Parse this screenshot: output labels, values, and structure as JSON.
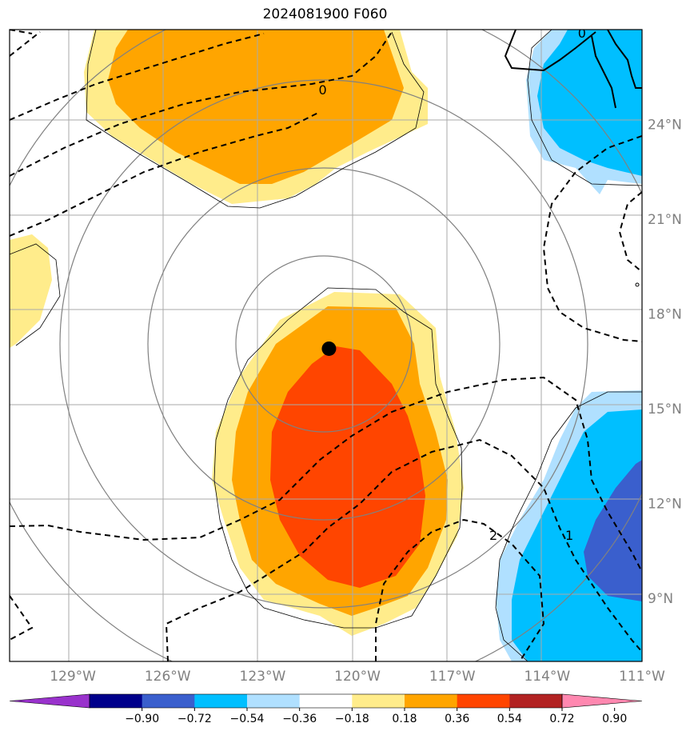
{
  "chart_data": {
    "type": "map",
    "title": "2024081900 F060",
    "lon_ticks": [
      {
        "value": -129,
        "label": "129°W"
      },
      {
        "value": -126,
        "label": "126°W"
      },
      {
        "value": -123,
        "label": "123°W"
      },
      {
        "value": -120,
        "label": "120°W"
      },
      {
        "value": -117,
        "label": "117°W"
      },
      {
        "value": -114,
        "label": "114°W"
      },
      {
        "value": -111,
        "label": "111°W"
      }
    ],
    "lat_ticks": [
      {
        "value": 9,
        "label": "9°N"
      },
      {
        "value": 12,
        "label": "12°N"
      },
      {
        "value": 15,
        "label": "15°N"
      },
      {
        "value": 18,
        "label": "18°N"
      },
      {
        "value": 21,
        "label": "21°N"
      },
      {
        "value": 24,
        "label": "24°N"
      }
    ],
    "lon_range": [
      -131,
      -111
    ],
    "lat_range": [
      7,
      27
    ],
    "grid": true,
    "storm_center": {
      "lon": -120.9,
      "lat": 16.9
    },
    "colorbar": {
      "levels": [
        "−0.90",
        "−0.72",
        "−0.54",
        "−0.36",
        "−0.18",
        "0.18",
        "0.36",
        "0.54",
        "0.72",
        "0.90"
      ],
      "colors": [
        "#9932cc",
        "#00008b",
        "#3a5fcd",
        "#00bfff",
        "#b0e0ff",
        "#ffffff",
        "#ffec8b",
        "#ffa500",
        "#ff4500",
        "#b22222",
        "#ff88b0"
      ],
      "extend": "both"
    },
    "contour_labels": [
      {
        "text": "0",
        "lon": -121.1,
        "lat": 25.1
      },
      {
        "text": "0",
        "lon": -112.9,
        "lat": 26.9
      },
      {
        "text": "2",
        "lon": -115.7,
        "lat": 11.0
      },
      {
        "text": "1",
        "lon": -113.3,
        "lat": 11.0
      }
    ]
  }
}
